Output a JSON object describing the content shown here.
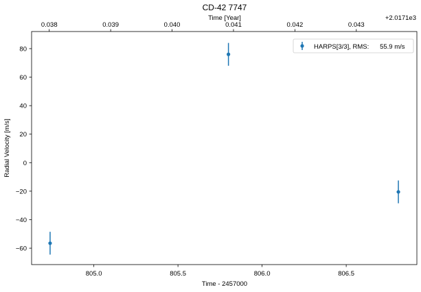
{
  "chart_data": {
    "type": "scatter",
    "title": "CD-42  7747",
    "xlabel": "Time - 2457000",
    "ylabel": "Radial Velocity [m/s]",
    "xlim": [
      804.63,
      806.92
    ],
    "ylim": [
      -71.5,
      92
    ],
    "x_ticks": [
      805.0,
      805.5,
      806.0,
      806.5
    ],
    "x_tick_labels": [
      "805.0",
      "805.5",
      "806.0",
      "806.5"
    ],
    "y_ticks": [
      -60,
      -40,
      -20,
      0,
      20,
      40,
      60,
      80
    ],
    "y_tick_labels": [
      "−60",
      "−40",
      "−20",
      "0",
      "20",
      "40",
      "60",
      "80"
    ],
    "top_axis": {
      "label": "Time [Year]",
      "offset_text": "+2.0171e3",
      "ticks": [
        {
          "x": 804.735,
          "label": "0.038"
        },
        {
          "x": 805.1,
          "label": "0.039"
        },
        {
          "x": 805.465,
          "label": "0.040"
        },
        {
          "x": 805.83,
          "label": "0.041"
        },
        {
          "x": 806.195,
          "label": "0.042"
        },
        {
          "x": 806.56,
          "label": "0.043"
        }
      ]
    },
    "grid": false,
    "legend_position": "top-right",
    "series": [
      {
        "name": "HARPS[3/3], RMS:      55.9 m/s",
        "color": "#1f77b4",
        "points": [
          {
            "x": 804.74,
            "y": -56.5,
            "err": 8.0
          },
          {
            "x": 805.8,
            "y": 76.0,
            "err": 8.0
          },
          {
            "x": 806.81,
            "y": -20.5,
            "err": 8.0
          }
        ]
      }
    ]
  }
}
